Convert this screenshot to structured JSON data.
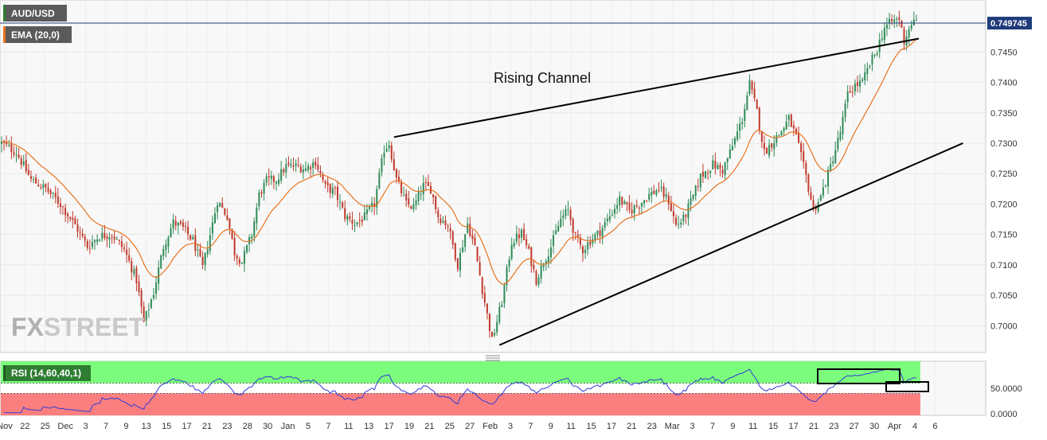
{
  "header": {
    "symbol": "AUD/USD",
    "indicator": "EMA (20,0)"
  },
  "watermark": {
    "part1": "FX",
    "part2": "STREET"
  },
  "annotation": {
    "label": "Rising Channel"
  },
  "colors": {
    "bull": "#2e8b57",
    "bear": "#c0392b",
    "ema": "#e8731f",
    "channel": "#000000",
    "price_line": "#1f3b7a",
    "price_tag": "#1f3b7a",
    "rsi_line": "#2f3bd8",
    "rsi_upper_zone": "#7cfc7c",
    "rsi_lower_zone": "#fb7f7f",
    "rsi_mid_zone": "#ffffff",
    "background": "#f8f8f8"
  },
  "price_axis": {
    "ticks": [
      "0.7450",
      "0.7400",
      "0.7350",
      "0.7300",
      "0.7250",
      "0.7200",
      "0.7150",
      "0.7100",
      "0.7050",
      "0.7000"
    ],
    "current_price": "0.749745"
  },
  "chart_data": {
    "type": "candlestick",
    "symbol": "AUD/USD",
    "ylim": [
      0.6965,
      0.7525
    ],
    "x_ticks": [
      "Nov",
      "22",
      "25",
      "Dec",
      "3",
      "7",
      "9",
      "13",
      "15",
      "17",
      "21",
      "23",
      "28",
      "30",
      "Jan",
      "5",
      "7",
      "11",
      "13",
      "17",
      "19",
      "21",
      "25",
      "27",
      "Feb",
      "3",
      "7",
      "9",
      "11",
      "15",
      "17",
      "21",
      "23",
      "Mar",
      "3",
      "7",
      "9",
      "11",
      "15",
      "17",
      "21",
      "23",
      "27",
      "30",
      "Apr",
      "4",
      "6"
    ],
    "price_ticks": [
      0.745,
      0.74,
      0.735,
      0.73,
      0.725,
      0.72,
      0.715,
      0.71,
      0.705,
      0.7
    ],
    "current_price": 0.749745,
    "price_path": [
      [
        0,
        0.73
      ],
      [
        6,
        0.7285
      ],
      [
        12,
        0.724
      ],
      [
        18,
        0.7225
      ],
      [
        24,
        0.72
      ],
      [
        30,
        0.7165
      ],
      [
        35,
        0.713
      ],
      [
        40,
        0.7148
      ],
      [
        45,
        0.715
      ],
      [
        50,
        0.7125
      ],
      [
        55,
        0.7075
      ],
      [
        58,
        0.7005
      ],
      [
        62,
        0.7055
      ],
      [
        66,
        0.713
      ],
      [
        70,
        0.717
      ],
      [
        74,
        0.716
      ],
      [
        78,
        0.714
      ],
      [
        82,
        0.7095
      ],
      [
        86,
        0.7168
      ],
      [
        88,
        0.7205
      ],
      [
        92,
        0.718
      ],
      [
        95,
        0.712
      ],
      [
        98,
        0.7105
      ],
      [
        102,
        0.715
      ],
      [
        105,
        0.7215
      ],
      [
        108,
        0.7238
      ],
      [
        112,
        0.724
      ],
      [
        116,
        0.7262
      ],
      [
        120,
        0.7262
      ],
      [
        124,
        0.7258
      ],
      [
        128,
        0.727
      ],
      [
        132,
        0.7228
      ],
      [
        136,
        0.722
      ],
      [
        140,
        0.718
      ],
      [
        144,
        0.7168
      ],
      [
        148,
        0.7178
      ],
      [
        152,
        0.72
      ],
      [
        156,
        0.729
      ],
      [
        158,
        0.73
      ],
      [
        161,
        0.724
      ],
      [
        165,
        0.72
      ],
      [
        168,
        0.7195
      ],
      [
        172,
        0.723
      ],
      [
        175,
        0.7225
      ],
      [
        178,
        0.718
      ],
      [
        182,
        0.7165
      ],
      [
        186,
        0.71
      ],
      [
        190,
        0.7168
      ],
      [
        193,
        0.7128
      ],
      [
        196,
        0.706
      ],
      [
        200,
        0.6975
      ],
      [
        204,
        0.704
      ],
      [
        208,
        0.7138
      ],
      [
        212,
        0.7152
      ],
      [
        215,
        0.712
      ],
      [
        218,
        0.7075
      ],
      [
        221,
        0.7105
      ],
      [
        224,
        0.713
      ],
      [
        228,
        0.7175
      ],
      [
        231,
        0.719
      ],
      [
        234,
        0.7145
      ],
      [
        237,
        0.7125
      ],
      [
        240,
        0.714
      ],
      [
        244,
        0.7155
      ],
      [
        248,
        0.718
      ],
      [
        252,
        0.7208
      ],
      [
        256,
        0.7188
      ],
      [
        260,
        0.72
      ],
      [
        264,
        0.7215
      ],
      [
        268,
        0.7225
      ],
      [
        272,
        0.7205
      ],
      [
        275,
        0.7165
      ],
      [
        278,
        0.7175
      ],
      [
        282,
        0.7212
      ],
      [
        285,
        0.7245
      ],
      [
        290,
        0.7265
      ],
      [
        294,
        0.7255
      ],
      [
        298,
        0.7295
      ],
      [
        302,
        0.734
      ],
      [
        305,
        0.7398
      ],
      [
        308,
        0.7352
      ],
      [
        311,
        0.7285
      ],
      [
        314,
        0.73
      ],
      [
        318,
        0.732
      ],
      [
        321,
        0.734
      ],
      [
        324,
        0.731
      ],
      [
        328,
        0.7245
      ],
      [
        331,
        0.719
      ],
      [
        334,
        0.7212
      ],
      [
        338,
        0.7262
      ],
      [
        342,
        0.7318
      ],
      [
        345,
        0.738
      ],
      [
        348,
        0.7395
      ],
      [
        351,
        0.74
      ],
      [
        354,
        0.743
      ],
      [
        357,
        0.7455
      ],
      [
        360,
        0.749
      ],
      [
        363,
        0.75
      ],
      [
        366,
        0.7505
      ],
      [
        368,
        0.7468
      ],
      [
        371,
        0.7498
      ]
    ],
    "ema_period": 20,
    "channel_upper": [
      [
        0.731,
        160
      ],
      [
        0.7472,
        374
      ]
    ],
    "channel_lower": [
      [
        0.6968,
        203
      ],
      [
        0.73,
        392
      ]
    ],
    "rsi": {
      "name": "RSI (14,60,40,1)",
      "upper": 60,
      "lower": 40,
      "ticks": [
        "50.0000",
        "0.0000"
      ]
    }
  }
}
